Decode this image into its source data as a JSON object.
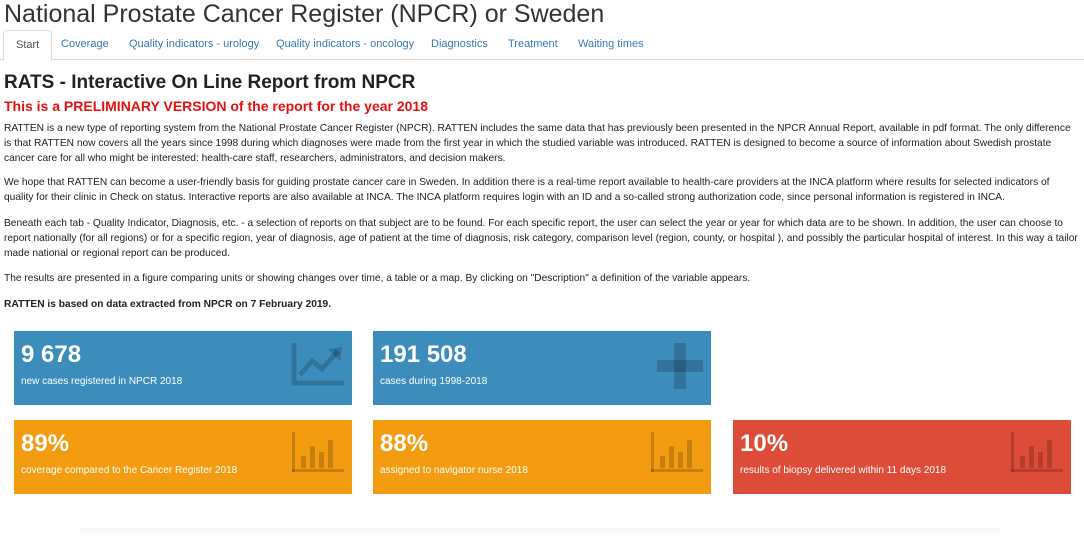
{
  "app": {
    "title": "National Prostate Cancer Register (NPCR) or Sweden"
  },
  "tabs": [
    {
      "label": "Start"
    },
    {
      "label": "Coverage"
    },
    {
      "label": "Quality indicators - urology"
    },
    {
      "label": "Quality indicators - oncology"
    },
    {
      "label": "Diagnostics"
    },
    {
      "label": "Treatment"
    },
    {
      "label": "Waiting times"
    }
  ],
  "main": {
    "title": "RATS - Interactive On Line Report from NPCR",
    "preliminary": "This is a PRELIMINARY VERSION of the report for the year 2018",
    "paragraphs": [
      "RATTEN is a new type of reporting system from the National Prostate Cancer Register (NPCR). RATTEN includes the same data that has previously been presented in the NPCR Annual Report, available in pdf format. The only difference is that RATTEN now covers all the years since 1998 during which diagnoses were made from the first year in which the studied variable was introduced. RATTEN is designed to become a source of information about Swedish prostate cancer care for all who might be interested: health-care staff, researchers, administrators, and decision makers.",
      "We hope that RATTEN can become a user-friendly basis for guiding prostate cancer care in Sweden. In addition there is a real-time report available to health-care providers at the INCA platform where results for selected indicators of quality for their clinic in Check on status. Interactive reports are also available at INCA. The INCA platform requires login with an ID and a so-called strong authorization code, since personal information is registered in INCA.",
      "Beneath each tab - Quality Indicator, Diagnosis, etc. - a selection of reports on that subject are to be found. For each specific report, the user can select the year or year for which data are to be shown. In addition, the user can choose to report nationally (for all regions) or for a specific region, year of diagnosis, age of patient at the time of diagnosis, risk category, comparison level (region, county, or hospital ), and possibly the particular hospital of interest. In this way a tailor made national or regional report can be produced.",
      "The results are presented in a figure comparing units or showing changes over time, a table or a map. By clicking on \"Description\" a definition of the variable appears.",
      "RATTEN is based on data extracted from NPCR on 7 February 2019."
    ]
  },
  "value_boxes": [
    {
      "value": "9 678",
      "label": "new cases registered in NPCR 2018",
      "icon": "line-chart-icon",
      "color": "#3c8dbc"
    },
    {
      "value": "191 508",
      "label": "cases during 1998-2018",
      "icon": "plus-icon",
      "color": "#3c8dbc"
    },
    {
      "value": "89%",
      "label": "coverage compared to the Cancer Register 2018",
      "icon": "bar-chart-icon",
      "color": "#f39c12"
    },
    {
      "value": "88%",
      "label": "assigned to navigator nurse 2018",
      "icon": "bar-chart-icon",
      "color": "#f39c12"
    },
    {
      "value": "10%",
      "label": "results of biopsy delivered within 11 days 2018",
      "icon": "bar-chart-icon",
      "color": "#dd4b39"
    }
  ]
}
